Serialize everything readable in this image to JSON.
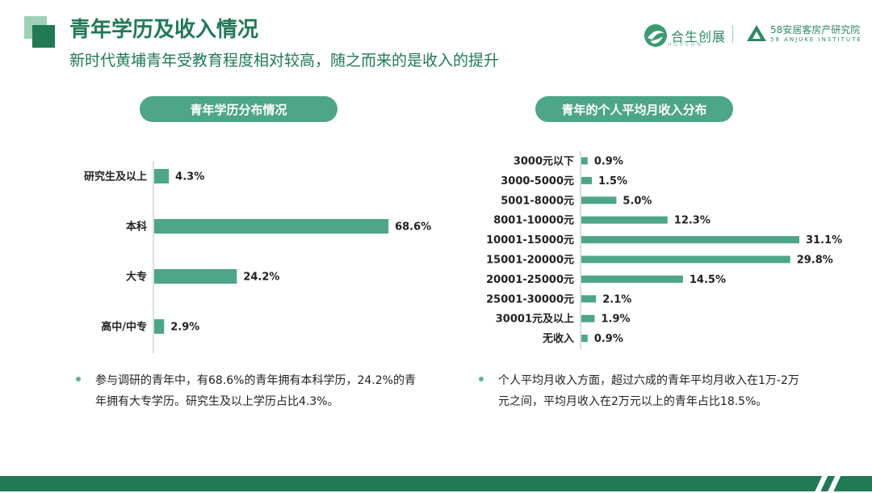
{
  "header": {
    "title": "青年学历及收入情况",
    "subtitle": "新时代黄埔青年受教育程度相对较高，随之而来的是收入的提升"
  },
  "logos": {
    "logo1_text": "合生创展",
    "logo1_sub": "HOPSON",
    "logo2_cn": "58安居客房产研究院",
    "logo2_en": "58 ANJUKE INSTITUTE"
  },
  "colors": {
    "primary": "#1f7a55",
    "bar": "#4da688",
    "accent": "#5bb896"
  },
  "chart_data": [
    {
      "type": "bar",
      "orientation": "horizontal",
      "title": "青年学历分布情况",
      "categories": [
        "研究生及以上",
        "本科",
        "大专",
        "高中/中专"
      ],
      "values": [
        4.3,
        68.6,
        24.2,
        2.9
      ],
      "value_labels": [
        "4.3%",
        "68.6%",
        "24.2%",
        "2.9%"
      ],
      "unit": "%",
      "xlim": [
        0,
        70
      ],
      "grid": false,
      "legend": "none"
    },
    {
      "type": "bar",
      "orientation": "horizontal",
      "title": "青年的个人平均月收入分布",
      "categories": [
        "3000元以下",
        "3000-5000元",
        "5001-8000元",
        "8001-10000元",
        "10001-15000元",
        "15001-20000元",
        "20001-25000元",
        "25001-30000元",
        "30001元及以上",
        "无收入"
      ],
      "values": [
        0.9,
        1.5,
        5.0,
        12.3,
        31.1,
        29.8,
        14.5,
        2.1,
        1.9,
        0.9
      ],
      "value_labels": [
        "0.9%",
        "1.5%",
        "5.0%",
        "12.3%",
        "31.1%",
        "29.8%",
        "14.5%",
        "2.1%",
        "1.9%",
        "0.9%"
      ],
      "unit": "%",
      "xlim": [
        0,
        31.1
      ],
      "grid": false,
      "legend": "none"
    }
  ],
  "notes": {
    "left": "参与调研的青年中，有68.6%的青年拥有本科学历，24.2%的青年拥有大专学历。研究生及以上学历占比4.3%。",
    "right": "个人平均月收入方面，超过六成的青年平均月收入在1万-2万元之间，平均月收入在2万元以上的青年占比18.5%。"
  }
}
